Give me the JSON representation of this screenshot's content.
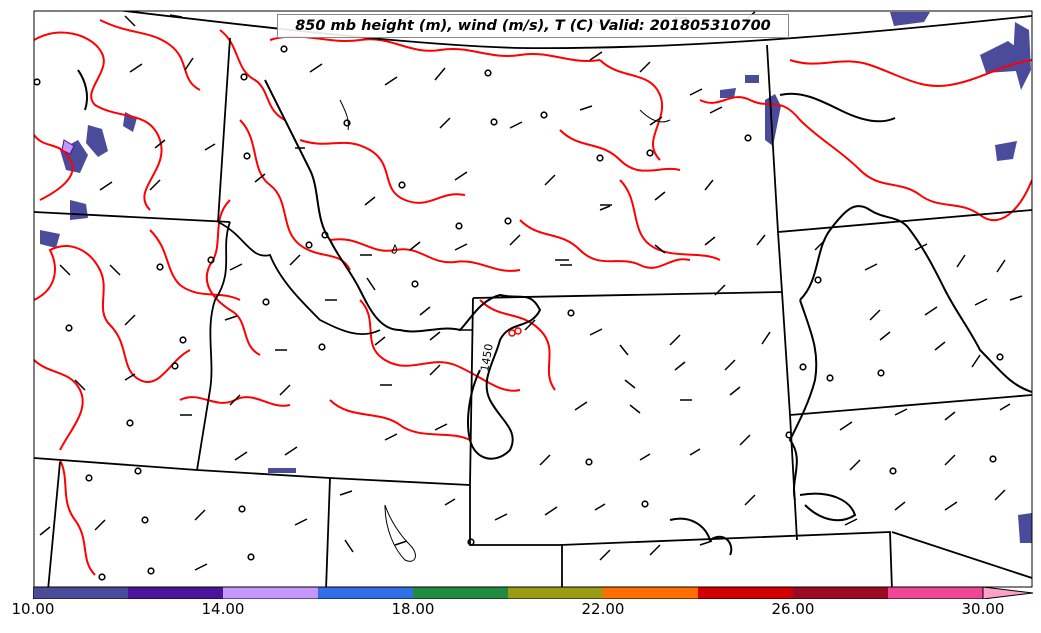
{
  "title": "850 mb height (m), wind (m/s), T (C) Valid: 201805310700",
  "contour_label": "1450",
  "colors": {
    "temperature_contour": "#ff0000",
    "height_contour": "#000000",
    "boundaries": "#000000",
    "shading": "#4b4b9b"
  },
  "colorbar": {
    "min": 10,
    "max": 30,
    "step": 2,
    "colors": [
      "#4b4b9b",
      "#4b149b",
      "#c896ff",
      "#326ee6",
      "#228b42",
      "#9c9c14",
      "#ff6e00",
      "#d20000",
      "#9b0a23",
      "#f04696",
      "#ffa0c8"
    ],
    "tick_labels": [
      "10.00",
      "14.00",
      "18.00",
      "22.00",
      "26.00",
      "30.00"
    ]
  }
}
